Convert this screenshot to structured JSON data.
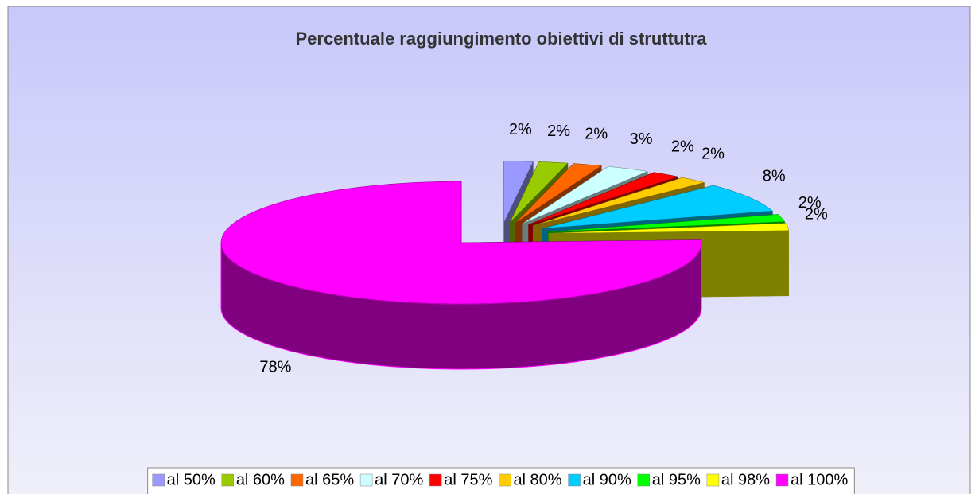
{
  "chart_data": {
    "type": "pie",
    "title": "Percentuale raggiungimento obiettivi di struttutra",
    "categories": [
      "al 50%",
      "al 60%",
      "al 65%",
      "al 70%",
      "al 75%",
      "al 80%",
      "al 90%",
      "al 95%",
      "al 98%",
      "al 100%"
    ],
    "values": [
      2,
      2,
      2,
      3,
      2,
      2,
      8,
      2,
      2,
      78
    ],
    "value_labels": [
      "2%",
      "2%",
      "2%",
      "3%",
      "2%",
      "2%",
      "8%",
      "2%",
      "2%",
      "78%"
    ],
    "colors": [
      "#9999ff",
      "#99cc00",
      "#ff6600",
      "#ccffff",
      "#ff0000",
      "#ffcc00",
      "#00ccff",
      "#00ff00",
      "#ffff00",
      "#ff00ff"
    ],
    "legend": "bottom"
  }
}
